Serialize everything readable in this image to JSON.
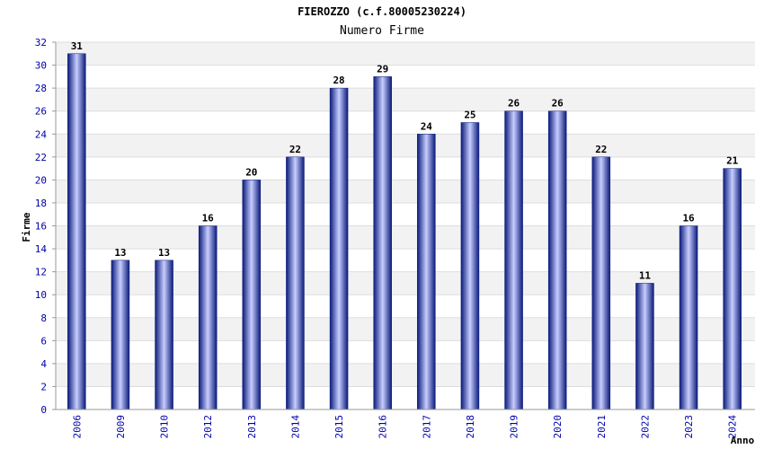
{
  "chart_data": {
    "type": "bar",
    "title": "FIEROZZO (c.f.80005230224)",
    "subtitle": "Numero Firme",
    "xlabel": "Anno",
    "ylabel": "Firme",
    "categories": [
      "2006",
      "2009",
      "2010",
      "2012",
      "2013",
      "2014",
      "2015",
      "2016",
      "2017",
      "2018",
      "2019",
      "2020",
      "2021",
      "2022",
      "2023",
      "2024"
    ],
    "values": [
      31,
      13,
      13,
      16,
      20,
      22,
      28,
      29,
      24,
      25,
      26,
      26,
      22,
      11,
      16,
      21
    ],
    "ylim": [
      0,
      32
    ],
    "yticks": [
      0,
      2,
      4,
      6,
      8,
      10,
      12,
      14,
      16,
      18,
      20,
      22,
      24,
      26,
      28,
      30,
      32
    ],
    "grid": true,
    "colors": {
      "bar_dark": "#0a1a7a",
      "bar_light": "#c8ceff",
      "tick_text": "#0000aa",
      "band": "#f2f2f2",
      "gridline": "#dddddd"
    }
  }
}
